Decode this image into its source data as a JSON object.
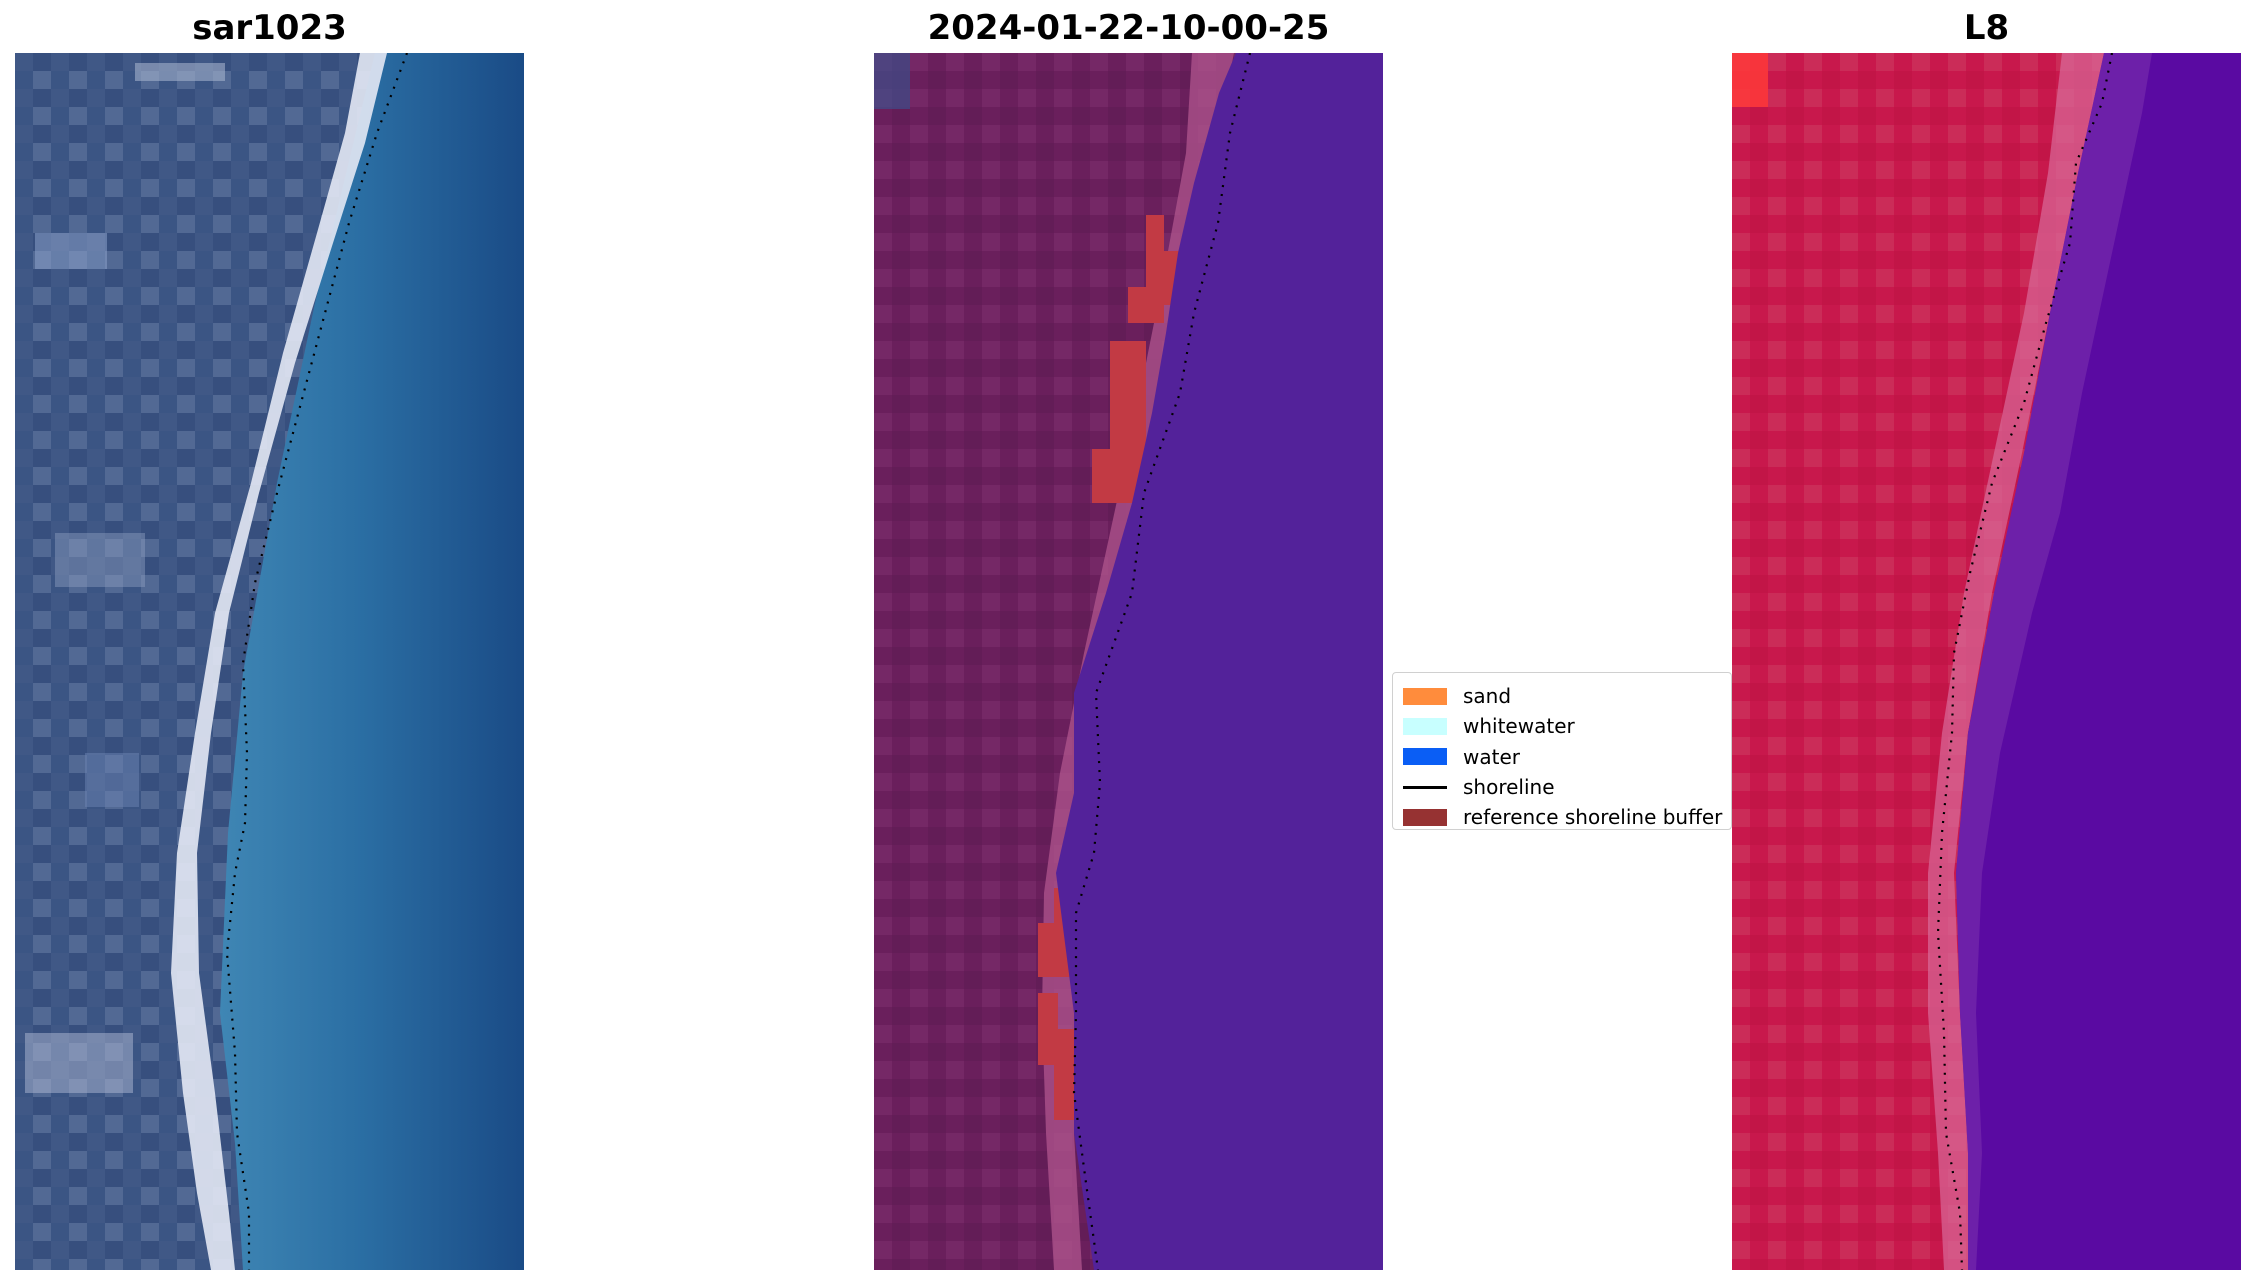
{
  "panels": [
    {
      "id": "rgb",
      "title": "sar1023"
    },
    {
      "id": "classified",
      "title": "2024-01-22-10-00-25"
    },
    {
      "id": "index",
      "title": "L8"
    }
  ],
  "legend": {
    "items": [
      {
        "label": "sand",
        "color": "#ff8c3c",
        "kind": "patch"
      },
      {
        "label": "whitewater",
        "color": "#c8ffff",
        "kind": "patch"
      },
      {
        "label": "water",
        "color": "#0a5ef5",
        "kind": "patch"
      },
      {
        "label": "shoreline",
        "color": "#000000",
        "kind": "line"
      },
      {
        "label": "reference shoreline buffer",
        "color": "#963232",
        "kind": "patch"
      }
    ]
  }
}
